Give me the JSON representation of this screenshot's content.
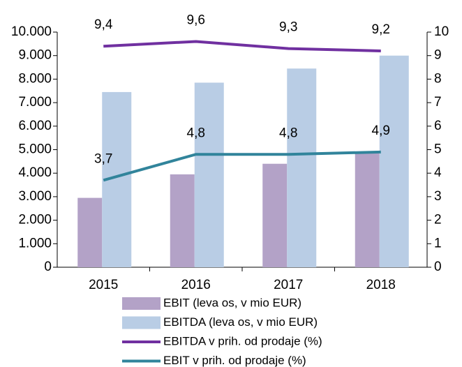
{
  "chart_data": {
    "type": "bar_line",
    "categories": [
      "2015",
      "2016",
      "2017",
      "2018"
    ],
    "series": [
      {
        "name": "EBIT (leva os, v mio EUR)",
        "color": "#b3a2c7",
        "kind": "bar",
        "values": [
          2950,
          3950,
          4400,
          4900
        ]
      },
      {
        "name": "EBITDA  (leva os, v mio EUR)",
        "color": "#b9cde5",
        "kind": "bar",
        "values": [
          7450,
          7850,
          8450,
          9000
        ]
      },
      {
        "name": "EBITDA v prih. od prodaje (%)",
        "color": "#7030a0",
        "kind": "line",
        "axis": "y2",
        "values": [
          9.4,
          9.6,
          9.3,
          9.2
        ],
        "value_labels": [
          "9,4",
          "9,6",
          "9,3",
          "9,2"
        ]
      },
      {
        "name": "EBIT v prih. od prodaje (%)",
        "color": "#31849b",
        "kind": "line",
        "axis": "y2",
        "values": [
          3.7,
          4.8,
          4.8,
          4.9
        ],
        "value_labels": [
          "3,7",
          "4,8",
          "4,8",
          "4,9"
        ]
      }
    ],
    "ylim": [
      0,
      10000
    ],
    "yticks": [
      0,
      {
        "value": 1000,
        "label": "1.000"
      },
      {
        "value": 2000,
        "label": "2.000"
      },
      {
        "value": 3000,
        "label": "3.000"
      },
      {
        "value": 4000,
        "label": "4.000"
      },
      {
        "value": 5000,
        "label": "5.000"
      },
      {
        "value": 6000,
        "label": "6.000"
      },
      {
        "value": 7000,
        "label": "7.000"
      },
      {
        "value": 8000,
        "label": "8.000"
      },
      {
        "value": 9000,
        "label": "9.000"
      },
      {
        "value": 10000,
        "label": "10.000"
      }
    ],
    "y2lim": [
      0,
      10
    ],
    "y2ticks": [
      0,
      1,
      2,
      3,
      4,
      5,
      6,
      7,
      8,
      9,
      10
    ],
    "legend": "bottom"
  }
}
